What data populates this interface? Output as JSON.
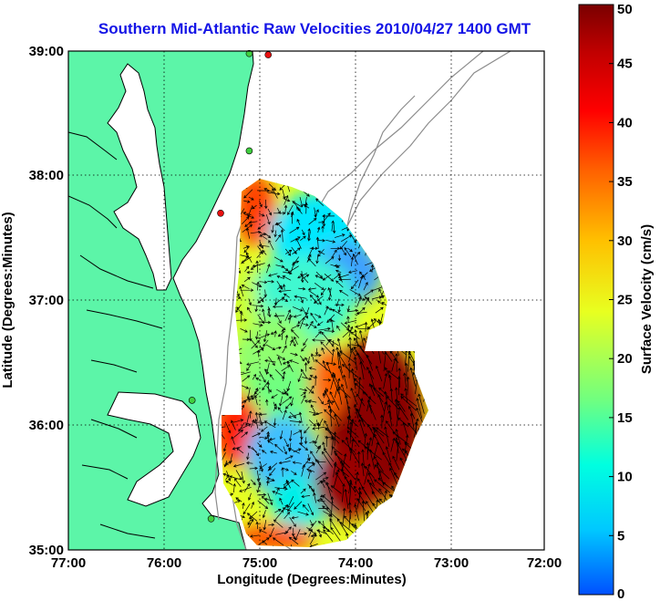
{
  "title": "Southern Mid-Atlantic Raw Velocities 2010/04/27 1400 GMT",
  "x_axis": {
    "label": "Longitude (Degrees:Minutes)",
    "ticks": [
      "77:00",
      "76:00",
      "75:00",
      "74:00",
      "73:00",
      "72:00"
    ]
  },
  "y_axis": {
    "label": "Latitude (Degrees:Minutes)",
    "ticks": [
      "39:00",
      "38:00",
      "37:00",
      "36:00",
      "35:00"
    ]
  },
  "colorbar": {
    "label": "Surface Velocity (cm/s)",
    "ticks": [
      "0",
      "5",
      "10",
      "15",
      "20",
      "25",
      "30",
      "35",
      "40",
      "45",
      "50"
    ],
    "range": [
      0,
      50
    ],
    "colors": [
      "#0050ff",
      "#00c8ff",
      "#00ffe0",
      "#70ff80",
      "#e8ff20",
      "#ffc000",
      "#ff6000",
      "#ff0000",
      "#c00000",
      "#7a0000"
    ]
  },
  "map": {
    "lon_range": [
      -77,
      -72
    ],
    "lat_range": [
      35,
      39
    ],
    "land_color": "#5cf5a8",
    "coast_color": "#000000",
    "bathymetry_color": "#8c8c8c",
    "grid": true,
    "stations": [
      {
        "lon": -74.9,
        "lat": 38.97,
        "color": "#e81010"
      },
      {
        "lon": -75.1,
        "lat": 38.98,
        "color": "#40d040"
      },
      {
        "lon": -75.1,
        "lat": 38.2,
        "color": "#40d040"
      },
      {
        "lon": -75.4,
        "lat": 37.7,
        "color": "#e81010"
      },
      {
        "lon": -75.7,
        "lat": 36.2,
        "color": "#40d040"
      },
      {
        "lon": -75.5,
        "lat": 35.25,
        "color": "#40d040"
      }
    ]
  }
}
